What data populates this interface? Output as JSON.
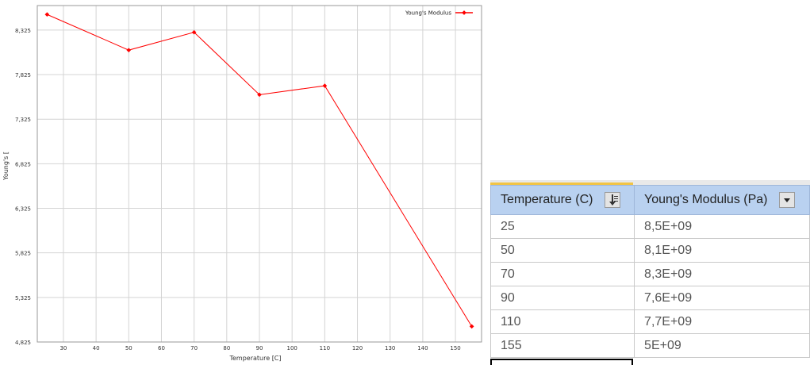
{
  "chart_data": {
    "type": "line",
    "xlabel": "Temperature  [C]",
    "ylabel": "Young's [",
    "xlim": [
      22,
      158
    ],
    "ylim": [
      4.825,
      8.6
    ],
    "x_ticks": [
      30,
      40,
      50,
      60,
      70,
      80,
      90,
      100,
      110,
      120,
      130,
      140,
      150
    ],
    "y_ticks": [
      4.825,
      5.325,
      5.825,
      6.325,
      6.825,
      7.325,
      7.825,
      8.325
    ],
    "grid": true,
    "legend_position": "top-right",
    "series": [
      {
        "name": "Young's Modulus",
        "color": "#ff0000",
        "x": [
          25,
          50,
          70,
          90,
          110,
          155
        ],
        "y": [
          8.5,
          8.1,
          8.3,
          7.6,
          7.7,
          5.0
        ]
      }
    ]
  },
  "table": {
    "columns": [
      "Temperature (C)",
      "Young's Modulus (Pa)"
    ],
    "rows": [
      [
        "25",
        "8,5E+09"
      ],
      [
        "50",
        "8,1E+09"
      ],
      [
        "70",
        "8,3E+09"
      ],
      [
        "90",
        "7,6E+09"
      ],
      [
        "110",
        "7,7E+09"
      ],
      [
        "155",
        "5E+09"
      ]
    ],
    "icons": {
      "sort": "sort-descending-icon",
      "filter": "dropdown-arrow-icon"
    }
  }
}
